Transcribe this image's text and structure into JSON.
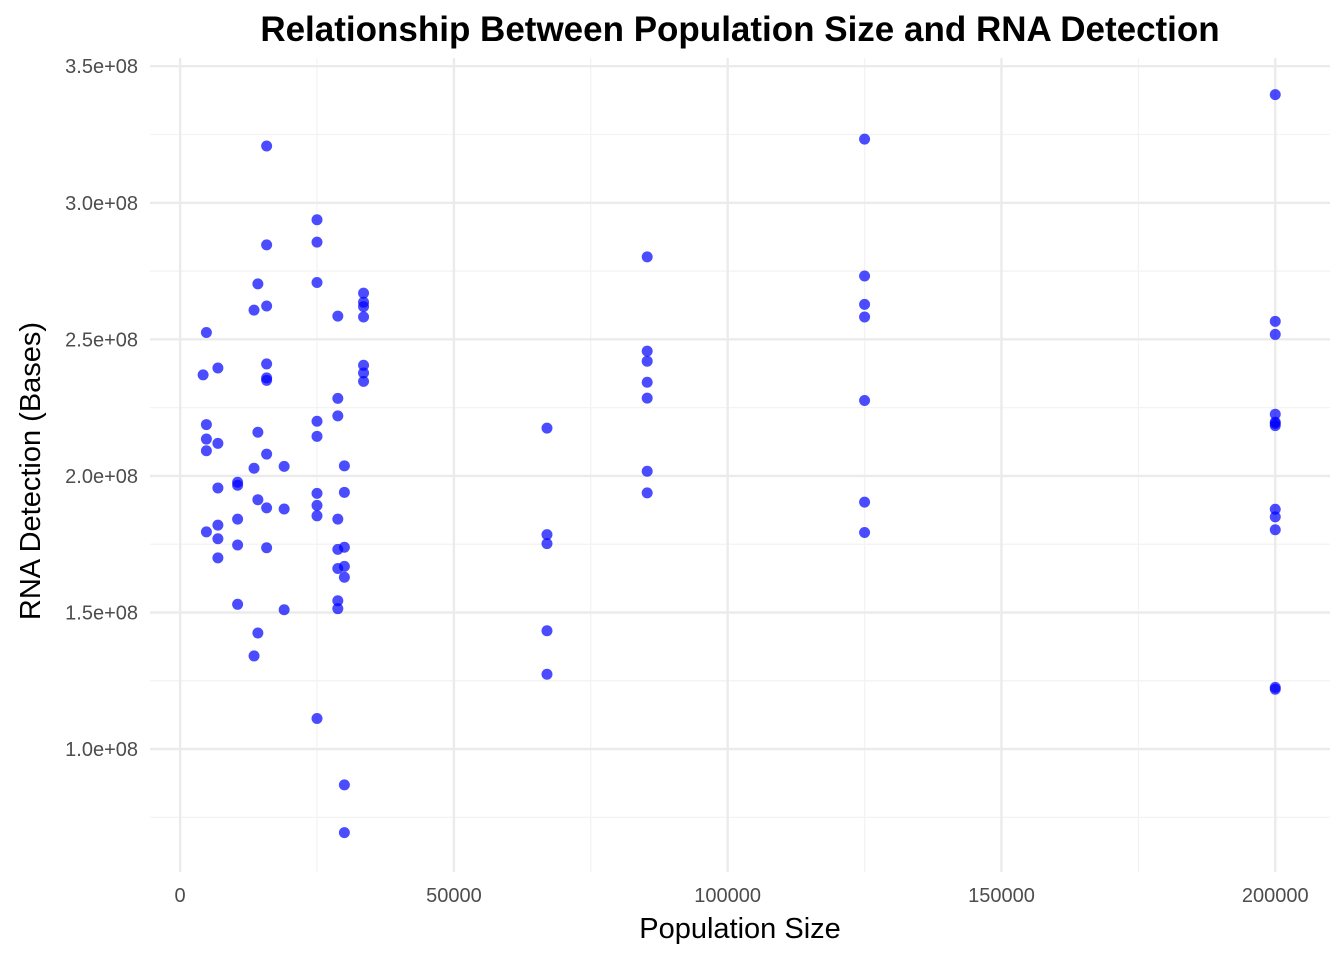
{
  "chart_data": {
    "type": "scatter",
    "title": "Relationship Between Population Size and RNA Detection",
    "xlabel": "Population Size",
    "ylabel": "RNA Detection (Bases)",
    "xlim": [
      -5500,
      210000
    ],
    "ylim": [
      55000000,
      353000000
    ],
    "x_ticks": [
      0,
      50000,
      100000,
      150000,
      200000
    ],
    "x_tick_labels": [
      "0",
      "50000",
      "100000",
      "150000",
      "200000"
    ],
    "y_ticks": [
      100000000,
      150000000,
      200000000,
      250000000,
      300000000,
      350000000
    ],
    "y_tick_labels": [
      "1.0e+08",
      "1.5e+08",
      "2.0e+08",
      "2.5e+08",
      "3.0e+08",
      "3.5e+08"
    ],
    "grid": true,
    "legend": "none",
    "point_color": "#0000ff",
    "series": [
      {
        "points": [
          [
            4200,
            237000000
          ],
          [
            4800,
            252500000
          ],
          [
            4800,
            218800000
          ],
          [
            4800,
            213500000
          ],
          [
            4800,
            209200000
          ],
          [
            4800,
            179500000
          ],
          [
            6900,
            239500000
          ],
          [
            6900,
            211900000
          ],
          [
            6900,
            195600000
          ],
          [
            6900,
            182000000
          ],
          [
            6900,
            177000000
          ],
          [
            6900,
            170000000
          ],
          [
            10500,
            197700000
          ],
          [
            10500,
            196600000
          ],
          [
            10500,
            184200000
          ],
          [
            10500,
            174700000
          ],
          [
            10500,
            153000000
          ],
          [
            13500,
            260700000
          ],
          [
            13500,
            202800000
          ],
          [
            13500,
            134100000
          ],
          [
            14200,
            270300000
          ],
          [
            14200,
            216000000
          ],
          [
            14200,
            191300000
          ],
          [
            14200,
            142500000
          ],
          [
            15800,
            320800000
          ],
          [
            15800,
            284600000
          ],
          [
            15800,
            262200000
          ],
          [
            15800,
            241000000
          ],
          [
            15800,
            235900000
          ],
          [
            15800,
            235000000
          ],
          [
            15800,
            208000000
          ],
          [
            15800,
            188300000
          ],
          [
            15800,
            173700000
          ],
          [
            19000,
            203500000
          ],
          [
            19000,
            187900000
          ],
          [
            19000,
            151000000
          ],
          [
            25000,
            293800000
          ],
          [
            25000,
            285600000
          ],
          [
            25000,
            270800000
          ],
          [
            25000,
            220000000
          ],
          [
            25000,
            214500000
          ],
          [
            25000,
            193600000
          ],
          [
            25000,
            189200000
          ],
          [
            25000,
            185400000
          ],
          [
            25000,
            111200000
          ],
          [
            28800,
            258500000
          ],
          [
            28800,
            228400000
          ],
          [
            28800,
            222000000
          ],
          [
            28800,
            184200000
          ],
          [
            28800,
            173100000
          ],
          [
            28800,
            166100000
          ],
          [
            28800,
            154300000
          ],
          [
            28800,
            151400000
          ],
          [
            30000,
            203700000
          ],
          [
            30000,
            194000000
          ],
          [
            30000,
            173900000
          ],
          [
            30000,
            166900000
          ],
          [
            30000,
            162900000
          ],
          [
            30000,
            86900000
          ],
          [
            30000,
            69400000
          ],
          [
            33500,
            266900000
          ],
          [
            33500,
            263600000
          ],
          [
            33500,
            262000000
          ],
          [
            33500,
            258200000
          ],
          [
            33500,
            240500000
          ],
          [
            33500,
            237700000
          ],
          [
            33500,
            234600000
          ],
          [
            67000,
            217500000
          ],
          [
            67000,
            178500000
          ],
          [
            67000,
            175200000
          ],
          [
            67000,
            143300000
          ],
          [
            67000,
            127400000
          ],
          [
            85300,
            280200000
          ],
          [
            85300,
            245700000
          ],
          [
            85300,
            242000000
          ],
          [
            85300,
            234300000
          ],
          [
            85300,
            228500000
          ],
          [
            85300,
            201700000
          ],
          [
            85300,
            193800000
          ],
          [
            125000,
            323300000
          ],
          [
            125000,
            273200000
          ],
          [
            125000,
            262800000
          ],
          [
            125000,
            258200000
          ],
          [
            125000,
            227600000
          ],
          [
            125000,
            190400000
          ],
          [
            125000,
            179300000
          ],
          [
            200000,
            339600000
          ],
          [
            200000,
            256600000
          ],
          [
            200000,
            251800000
          ],
          [
            200000,
            222600000
          ],
          [
            200000,
            219700000
          ],
          [
            200000,
            219200000
          ],
          [
            200000,
            218400000
          ],
          [
            200000,
            187800000
          ],
          [
            200000,
            185000000
          ],
          [
            200000,
            180300000
          ],
          [
            200000,
            122600000
          ],
          [
            200000,
            121900000
          ]
        ]
      }
    ]
  }
}
